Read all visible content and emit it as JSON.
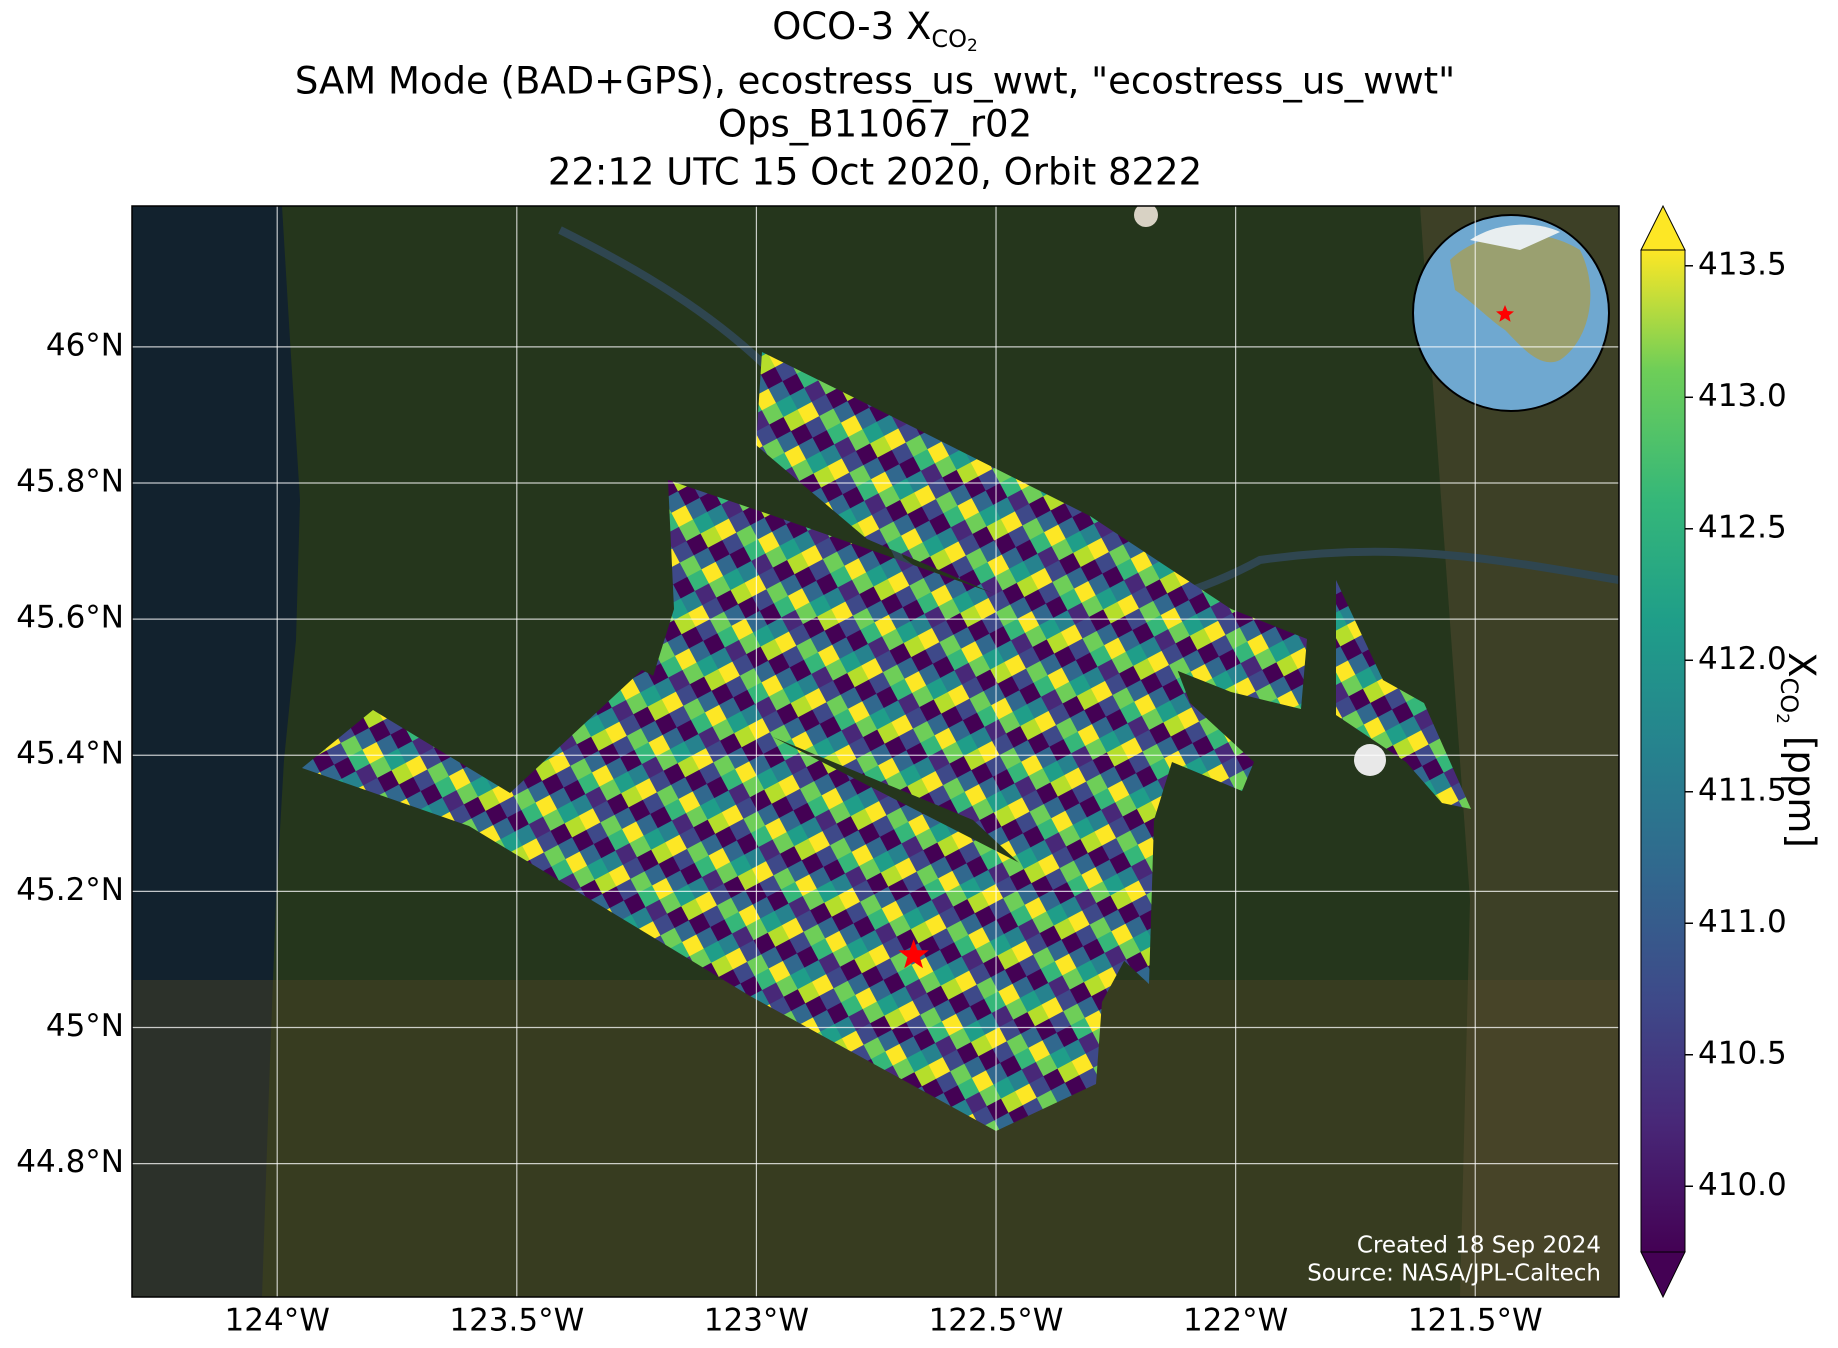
{
  "chart_data": {
    "type": "map",
    "title": {
      "text": "OCO-3 X",
      "subscript": "CO",
      "subsubscript": "2"
    },
    "subtitles": [
      "SAM Mode (BAD+GPS), ecostress_us_wwt, \"ecostress_us_wwt\"",
      "Ops_B11067_r02",
      "22:12 UTC 15 Oct 2020, Orbit 8222"
    ],
    "xlim": [
      -124.303,
      -121.2
    ],
    "ylim": [
      44.604,
      46.207
    ],
    "xticks": [
      {
        "value": -124,
        "label": "124°W"
      },
      {
        "value": -123.5,
        "label": "123.5°W"
      },
      {
        "value": -123,
        "label": "123°W"
      },
      {
        "value": -122.5,
        "label": "122.5°W"
      },
      {
        "value": -122,
        "label": "122°W"
      },
      {
        "value": -121.5,
        "label": "121.5°W"
      }
    ],
    "yticks": [
      {
        "value": 44.8,
        "label": "44.8°N"
      },
      {
        "value": 45,
        "label": "45°N"
      },
      {
        "value": 45.2,
        "label": "45.2°N"
      },
      {
        "value": 45.4,
        "label": "45.4°N"
      },
      {
        "value": 45.6,
        "label": "45.6°N"
      },
      {
        "value": 45.8,
        "label": "45.8°N"
      },
      {
        "value": 46,
        "label": "46°N"
      }
    ],
    "grid": true,
    "target": {
      "lon": -122.672,
      "lat": 45.106,
      "color": "#ff0000"
    },
    "colorbar": {
      "label": {
        "text": "X",
        "subscript": "CO",
        "subsubscript": "2",
        "unit": "[ppm]"
      },
      "lim": [
        409.75,
        413.56
      ],
      "ticks": [
        {
          "value": 410,
          "label": "410.0"
        },
        410.5,
        {
          "value": 411,
          "label": "411.0"
        },
        411.5,
        {
          "value": 412,
          "label": "412.0"
        },
        412.5,
        {
          "value": 413,
          "label": "413.0"
        },
        413.5
      ],
      "colormap": "viridis"
    },
    "annotations": [
      "Created 18 Sep 2024",
      "Source: NASA/JPL-Caltech"
    ]
  }
}
